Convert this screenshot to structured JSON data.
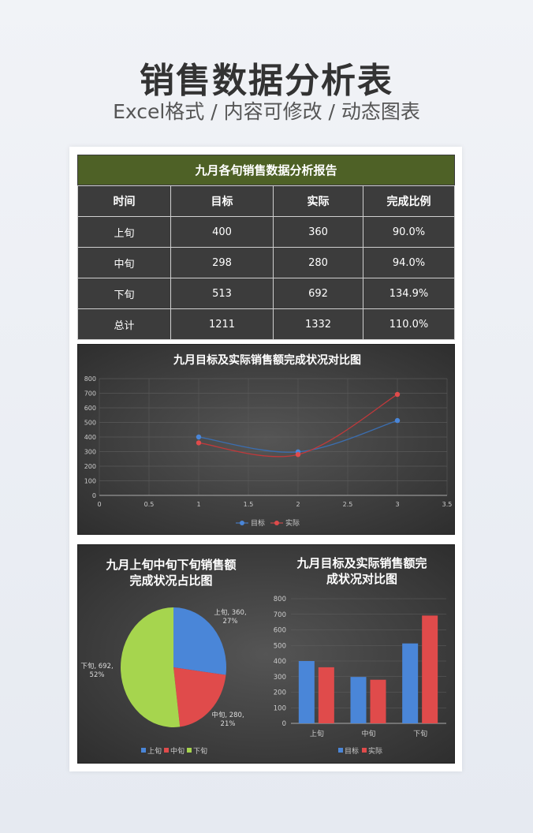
{
  "header": {
    "title": "销售数据分析表",
    "subtitle": "Excel格式 / 内容可修改 / 动态图表"
  },
  "report": {
    "title": "九月各旬销售数据分析报告",
    "columns": [
      "时间",
      "目标",
      "实际",
      "完成比例"
    ],
    "rows": [
      [
        "上旬",
        "400",
        "360",
        "90.0%"
      ],
      [
        "中旬",
        "298",
        "280",
        "94.0%"
      ],
      [
        "下旬",
        "513",
        "692",
        "134.9%"
      ],
      [
        "总计",
        "1211",
        "1332",
        "110.0%"
      ]
    ]
  },
  "colors": {
    "target": "#4a86d8",
    "actual": "#e04b4b",
    "third": "#a6d54e"
  },
  "chart_data": [
    {
      "type": "line",
      "title": "九月目标及实际销售额完成状况对比图",
      "xlim": [
        0,
        3.5
      ],
      "ylim": [
        0,
        800
      ],
      "xticks": [
        "0",
        "0.5",
        "1",
        "1.5",
        "2",
        "2.5",
        "3",
        "3.5"
      ],
      "yticks": [
        "0",
        "100",
        "200",
        "300",
        "400",
        "500",
        "600",
        "700",
        "800"
      ],
      "x": [
        1,
        2,
        3
      ],
      "series": [
        {
          "name": "目标",
          "values": [
            400,
            298,
            513
          ]
        },
        {
          "name": "实际",
          "values": [
            360,
            280,
            692
          ]
        }
      ],
      "legend": "bottom",
      "grid": true
    },
    {
      "type": "pie",
      "title": "九月上旬中旬下旬销售额完成状况占比图",
      "categories": [
        "上旬",
        "中旬",
        "下旬"
      ],
      "values": [
        360,
        280,
        692
      ],
      "data_labels": [
        "上旬, 360, 27%",
        "中旬, 280, 21%",
        "下旬, 692, 52%"
      ],
      "legend": "bottom"
    },
    {
      "type": "bar",
      "title": "九月目标及实际销售额完成状况对比图",
      "ylim": [
        0,
        800
      ],
      "yticks": [
        "0",
        "100",
        "200",
        "300",
        "400",
        "500",
        "600",
        "700",
        "800"
      ],
      "categories": [
        "上旬",
        "中旬",
        "下旬"
      ],
      "series": [
        {
          "name": "目标",
          "values": [
            400,
            298,
            513
          ]
        },
        {
          "name": "实际",
          "values": [
            360,
            280,
            692
          ]
        }
      ],
      "legend": "bottom",
      "grid": true
    }
  ]
}
